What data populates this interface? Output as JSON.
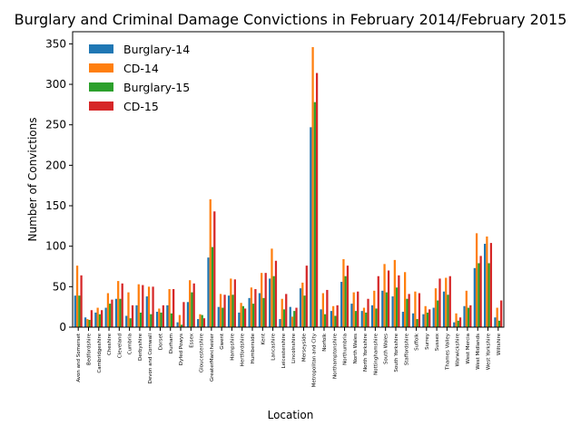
{
  "chart_data": {
    "type": "bar",
    "title": "Burglary and Criminal Damage Convictions in February 2014/February 2015",
    "xlabel": "Location",
    "ylabel": "Number of Convictions",
    "ylim": [
      0,
      365
    ],
    "yticks": [
      0,
      50,
      100,
      150,
      200,
      250,
      300,
      350
    ],
    "grid": false,
    "legend_position": "top-left",
    "categories": [
      "Avon and Somerset",
      "Bedfordshire",
      "Cambridgeshire",
      "Cheshire",
      "Cleveland",
      "Cumbria",
      "Derbyshire",
      "Devon and Cornwall",
      "Dorset",
      "Durham",
      "Dyfed Powys",
      "Essex",
      "Gloucestershire",
      "GreaterManchester",
      "Gwent",
      "Hampshire",
      "Hertfordshire",
      "Humberside",
      "Kent",
      "Lancashire",
      "Leicestershire",
      "Lincolnshire",
      "Merseyside",
      "Metropolitan and City",
      "Norfolk",
      "Northamptonshire",
      "Northumbria",
      "North Wales",
      "North Yorkshire",
      "Nottinghamshire",
      "South Wales",
      "South Yorkshire",
      "Staffordshire",
      "Suffolk",
      "Surrey",
      "Sussex",
      "Thames Valley",
      "Warwickshire",
      "West Mercia",
      "West Midlands",
      "West Yorkshire",
      "Wiltshire"
    ],
    "series": [
      {
        "name": "Burglary-14",
        "color": "#1f77b4",
        "values": [
          39,
          12,
          18,
          24,
          35,
          14,
          27,
          38,
          19,
          27,
          6,
          31,
          10,
          86,
          25,
          39,
          18,
          36,
          42,
          60,
          10,
          25,
          48,
          247,
          22,
          20,
          56,
          29,
          20,
          27,
          45,
          38,
          19,
          17,
          16,
          24,
          44,
          6,
          26,
          73,
          103,
          12
        ]
      },
      {
        "name": "CD-14",
        "color": "#ff7f0e",
        "values": [
          76,
          10,
          24,
          42,
          57,
          43,
          53,
          50,
          23,
          47,
          15,
          58,
          16,
          158,
          41,
          60,
          30,
          49,
          67,
          97,
          35,
          13,
          55,
          346,
          42,
          26,
          84,
          43,
          24,
          45,
          78,
          83,
          68,
          44,
          26,
          48,
          61,
          17,
          45,
          116,
          112,
          24
        ]
      },
      {
        "name": "Burglary-15",
        "color": "#2ca02c",
        "values": [
          39,
          9,
          16,
          29,
          35,
          11,
          18,
          16,
          18,
          17,
          3,
          43,
          15,
          99,
          24,
          40,
          26,
          29,
          36,
          63,
          22,
          20,
          39,
          278,
          16,
          14,
          63,
          20,
          18,
          23,
          43,
          49,
          35,
          10,
          18,
          33,
          40,
          8,
          24,
          79,
          79,
          8
        ]
      },
      {
        "name": "CD-15",
        "color": "#d62728",
        "values": [
          64,
          21,
          21,
          34,
          54,
          27,
          52,
          50,
          27,
          47,
          31,
          54,
          11,
          143,
          40,
          59,
          23,
          47,
          67,
          82,
          41,
          24,
          76,
          314,
          46,
          27,
          76,
          44,
          35,
          63,
          70,
          64,
          41,
          42,
          22,
          60,
          63,
          12,
          27,
          88,
          104,
          33
        ]
      }
    ]
  }
}
